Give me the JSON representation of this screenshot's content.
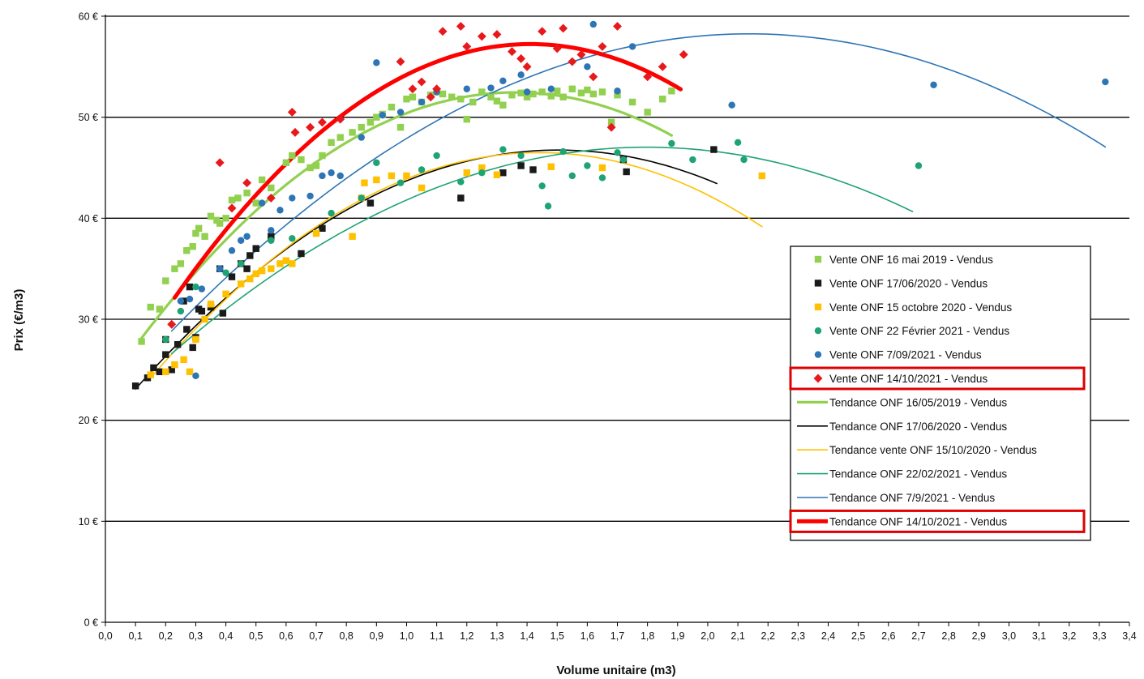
{
  "chart_data": {
    "type": "scatter",
    "title": "",
    "xlabel": "Volume unitaire (m3)",
    "ylabel": "Prix (€/m3)",
    "xlim": [
      0,
      3.4
    ],
    "ylim": [
      0,
      60
    ],
    "x_ticks": [
      "0,0",
      "0,1",
      "0,2",
      "0,3",
      "0,4",
      "0,5",
      "0,6",
      "0,7",
      "0,8",
      "0,9",
      "1,0",
      "1,1",
      "1,2",
      "1,3",
      "1,4",
      "1,5",
      "1,6",
      "1,7",
      "1,8",
      "1,9",
      "2,0",
      "2,1",
      "2,2",
      "2,3",
      "2,4",
      "2,5",
      "2,6",
      "2,7",
      "2,8",
      "2,9",
      "3,0",
      "3,1",
      "3,2",
      "3,3",
      "3,4"
    ],
    "y_ticks": [
      "0 €",
      "10 €",
      "20 €",
      "30 €",
      "40 €",
      "50 €",
      "60 €"
    ],
    "grid": "horizontal",
    "legend_position": "right",
    "series": [
      {
        "name": "Vente ONF 16 mai 2019 - Vendus",
        "marker": "square",
        "color": "#92D050",
        "points": [
          [
            0.12,
            27.8
          ],
          [
            0.15,
            31.2
          ],
          [
            0.18,
            31.0
          ],
          [
            0.2,
            33.8
          ],
          [
            0.23,
            35.0
          ],
          [
            0.25,
            35.5
          ],
          [
            0.27,
            36.8
          ],
          [
            0.29,
            37.2
          ],
          [
            0.3,
            38.5
          ],
          [
            0.31,
            39.0
          ],
          [
            0.33,
            38.2
          ],
          [
            0.35,
            40.2
          ],
          [
            0.37,
            39.8
          ],
          [
            0.38,
            39.5
          ],
          [
            0.4,
            40.0
          ],
          [
            0.42,
            41.8
          ],
          [
            0.44,
            42.0
          ],
          [
            0.47,
            42.5
          ],
          [
            0.5,
            41.5
          ],
          [
            0.52,
            43.8
          ],
          [
            0.55,
            43.0
          ],
          [
            0.6,
            45.5
          ],
          [
            0.62,
            46.2
          ],
          [
            0.65,
            45.8
          ],
          [
            0.68,
            45.0
          ],
          [
            0.7,
            45.2
          ],
          [
            0.72,
            46.2
          ],
          [
            0.75,
            47.5
          ],
          [
            0.78,
            48.0
          ],
          [
            0.82,
            48.5
          ],
          [
            0.85,
            49.0
          ],
          [
            0.88,
            49.5
          ],
          [
            0.9,
            50.0
          ],
          [
            0.92,
            50.3
          ],
          [
            0.95,
            51.0
          ],
          [
            0.98,
            49.0
          ],
          [
            1.0,
            51.8
          ],
          [
            1.02,
            52.0
          ],
          [
            1.05,
            51.5
          ],
          [
            1.08,
            52.2
          ],
          [
            1.1,
            52.5
          ],
          [
            1.12,
            52.3
          ],
          [
            1.15,
            52.0
          ],
          [
            1.18,
            51.8
          ],
          [
            1.2,
            49.8
          ],
          [
            1.22,
            51.5
          ],
          [
            1.25,
            52.5
          ],
          [
            1.28,
            52.0
          ],
          [
            1.3,
            51.6
          ],
          [
            1.32,
            51.2
          ],
          [
            1.35,
            52.2
          ],
          [
            1.38,
            52.4
          ],
          [
            1.4,
            52.0
          ],
          [
            1.42,
            52.3
          ],
          [
            1.45,
            52.5
          ],
          [
            1.48,
            52.1
          ],
          [
            1.5,
            52.6
          ],
          [
            1.52,
            52.0
          ],
          [
            1.55,
            52.8
          ],
          [
            1.58,
            52.4
          ],
          [
            1.6,
            52.7
          ],
          [
            1.62,
            52.3
          ],
          [
            1.65,
            52.5
          ],
          [
            1.68,
            49.5
          ],
          [
            1.7,
            52.2
          ],
          [
            1.75,
            51.5
          ],
          [
            1.8,
            50.5
          ],
          [
            1.85,
            51.8
          ],
          [
            1.88,
            52.6
          ]
        ]
      },
      {
        "name": "Vente ONF 17/06/2020 - Vendus",
        "marker": "square",
        "color": "#1A1A1A",
        "points": [
          [
            0.1,
            23.4
          ],
          [
            0.14,
            24.2
          ],
          [
            0.16,
            25.2
          ],
          [
            0.18,
            24.8
          ],
          [
            0.2,
            26.5
          ],
          [
            0.2,
            28.0
          ],
          [
            0.22,
            25.0
          ],
          [
            0.24,
            27.5
          ],
          [
            0.26,
            31.8
          ],
          [
            0.27,
            29.0
          ],
          [
            0.28,
            33.2
          ],
          [
            0.29,
            27.2
          ],
          [
            0.3,
            28.2
          ],
          [
            0.31,
            31.0
          ],
          [
            0.32,
            30.8
          ],
          [
            0.35,
            31.2
          ],
          [
            0.38,
            35.0
          ],
          [
            0.39,
            30.6
          ],
          [
            0.42,
            34.2
          ],
          [
            0.45,
            35.5
          ],
          [
            0.47,
            35.0
          ],
          [
            0.48,
            36.3
          ],
          [
            0.5,
            37.0
          ],
          [
            0.55,
            38.2
          ],
          [
            0.65,
            36.5
          ],
          [
            0.72,
            39.0
          ],
          [
            0.88,
            41.5
          ],
          [
            1.18,
            42.0
          ],
          [
            1.32,
            44.5
          ],
          [
            1.38,
            45.2
          ],
          [
            1.42,
            44.8
          ],
          [
            1.72,
            45.8
          ],
          [
            1.73,
            44.6
          ],
          [
            2.02,
            46.8
          ]
        ]
      },
      {
        "name": "Vente ONF 15 octobre 2020 - Vendus",
        "marker": "square",
        "color": "#FFC000",
        "points": [
          [
            0.15,
            24.5
          ],
          [
            0.2,
            24.8
          ],
          [
            0.23,
            25.5
          ],
          [
            0.26,
            26.0
          ],
          [
            0.28,
            24.8
          ],
          [
            0.3,
            28.0
          ],
          [
            0.33,
            30.0
          ],
          [
            0.35,
            31.5
          ],
          [
            0.4,
            32.5
          ],
          [
            0.45,
            33.5
          ],
          [
            0.48,
            34.0
          ],
          [
            0.5,
            34.5
          ],
          [
            0.52,
            34.8
          ],
          [
            0.55,
            35.0
          ],
          [
            0.58,
            35.5
          ],
          [
            0.6,
            35.8
          ],
          [
            0.62,
            35.5
          ],
          [
            0.7,
            38.5
          ],
          [
            0.82,
            38.2
          ],
          [
            0.85,
            42.0
          ],
          [
            0.86,
            43.5
          ],
          [
            0.9,
            43.8
          ],
          [
            0.95,
            44.2
          ],
          [
            1.0,
            44.2
          ],
          [
            1.05,
            43.0
          ],
          [
            1.2,
            44.5
          ],
          [
            1.25,
            45.0
          ],
          [
            1.3,
            44.3
          ],
          [
            1.48,
            45.1
          ],
          [
            1.65,
            45.0
          ],
          [
            2.18,
            44.2
          ]
        ]
      },
      {
        "name": "Vente ONF 22 Février 2021 - Vendus",
        "marker": "circle",
        "color": "#1FA373",
        "points": [
          [
            0.2,
            28.0
          ],
          [
            0.25,
            30.8
          ],
          [
            0.3,
            33.2
          ],
          [
            0.4,
            34.6
          ],
          [
            0.45,
            35.5
          ],
          [
            0.55,
            37.8
          ],
          [
            0.62,
            38.0
          ],
          [
            0.75,
            40.5
          ],
          [
            0.85,
            42.0
          ],
          [
            0.9,
            45.5
          ],
          [
            0.98,
            43.5
          ],
          [
            1.05,
            44.8
          ],
          [
            1.1,
            46.2
          ],
          [
            1.18,
            43.6
          ],
          [
            1.25,
            44.5
          ],
          [
            1.32,
            46.8
          ],
          [
            1.38,
            46.2
          ],
          [
            1.45,
            43.2
          ],
          [
            1.47,
            41.2
          ],
          [
            1.52,
            46.6
          ],
          [
            1.55,
            44.2
          ],
          [
            1.6,
            45.2
          ],
          [
            1.65,
            44.0
          ],
          [
            1.7,
            46.5
          ],
          [
            1.72,
            45.8
          ],
          [
            1.88,
            47.4
          ],
          [
            1.95,
            45.8
          ],
          [
            2.1,
            47.5
          ],
          [
            2.12,
            45.8
          ],
          [
            2.7,
            45.2
          ]
        ]
      },
      {
        "name": "Vente ONF 7/09/2021 - Vendus",
        "marker": "circle",
        "color": "#2E75B6",
        "points": [
          [
            0.25,
            31.8
          ],
          [
            0.28,
            32.0
          ],
          [
            0.3,
            24.4
          ],
          [
            0.32,
            33.0
          ],
          [
            0.38,
            35.0
          ],
          [
            0.42,
            36.8
          ],
          [
            0.45,
            37.8
          ],
          [
            0.47,
            38.2
          ],
          [
            0.52,
            41.5
          ],
          [
            0.55,
            38.8
          ],
          [
            0.58,
            40.8
          ],
          [
            0.62,
            42.0
          ],
          [
            0.68,
            42.2
          ],
          [
            0.72,
            44.2
          ],
          [
            0.75,
            44.5
          ],
          [
            0.78,
            44.2
          ],
          [
            0.85,
            48.0
          ],
          [
            0.9,
            55.4
          ],
          [
            0.92,
            50.2
          ],
          [
            0.98,
            50.5
          ],
          [
            1.05,
            51.5
          ],
          [
            1.1,
            52.5
          ],
          [
            1.2,
            52.8
          ],
          [
            1.28,
            52.9
          ],
          [
            1.32,
            53.6
          ],
          [
            1.38,
            54.2
          ],
          [
            1.4,
            52.5
          ],
          [
            1.48,
            52.8
          ],
          [
            1.6,
            55.0
          ],
          [
            1.62,
            59.2
          ],
          [
            1.7,
            52.6
          ],
          [
            1.75,
            57.0
          ],
          [
            2.08,
            51.2
          ],
          [
            2.75,
            53.2
          ],
          [
            3.32,
            53.5
          ]
        ]
      },
      {
        "name": "Vente ONF 14/10/2021 - Vendus",
        "marker": "diamond",
        "color": "#E8191C",
        "points": [
          [
            0.22,
            29.5
          ],
          [
            0.38,
            45.5
          ],
          [
            0.42,
            41.0
          ],
          [
            0.47,
            43.5
          ],
          [
            0.55,
            42.0
          ],
          [
            0.62,
            50.5
          ],
          [
            0.63,
            48.5
          ],
          [
            0.68,
            49.0
          ],
          [
            0.72,
            49.5
          ],
          [
            0.78,
            49.8
          ],
          [
            0.98,
            55.5
          ],
          [
            1.02,
            52.8
          ],
          [
            1.05,
            53.5
          ],
          [
            1.08,
            52.0
          ],
          [
            1.1,
            52.8
          ],
          [
            1.12,
            58.5
          ],
          [
            1.18,
            59.0
          ],
          [
            1.2,
            57.0
          ],
          [
            1.25,
            58.0
          ],
          [
            1.3,
            58.2
          ],
          [
            1.35,
            56.5
          ],
          [
            1.38,
            55.8
          ],
          [
            1.4,
            55.0
          ],
          [
            1.45,
            58.5
          ],
          [
            1.5,
            56.8
          ],
          [
            1.52,
            58.8
          ],
          [
            1.55,
            55.5
          ],
          [
            1.58,
            56.2
          ],
          [
            1.62,
            54.0
          ],
          [
            1.65,
            57.0
          ],
          [
            1.68,
            49.0
          ],
          [
            1.7,
            59.0
          ],
          [
            1.8,
            54.0
          ],
          [
            1.85,
            55.0
          ],
          [
            1.92,
            56.2
          ]
        ]
      }
    ],
    "trendlines": [
      {
        "name": "Tendance ONF 16/05/2019 - Vendus",
        "color": "#92D050",
        "width": 3.2,
        "x_range": [
          0.12,
          1.88
        ],
        "poly": [
          23.2,
          43.0,
          -15.8
        ]
      },
      {
        "name": "Tendance ONF 17/06/2020 - Vendus",
        "color": "#000000",
        "width": 1.6,
        "x_range": [
          0.1,
          2.03
        ],
        "poly": [
          19.6,
          36.1,
          -12.0
        ]
      },
      {
        "name": "Tendance vente ONF 15/10/2020 - Vendus",
        "color": "#FFC000",
        "width": 1.6,
        "x_range": [
          0.15,
          2.18
        ],
        "poly": [
          18.7,
          38.6,
          -13.4
        ]
      },
      {
        "name": "Tendance  ONF 22/02/2021 - Vendus",
        "color": "#1FA373",
        "width": 1.6,
        "x_range": [
          0.22,
          2.68
        ],
        "poly": [
          20.5,
          29.5,
          -8.2
        ]
      },
      {
        "name": "Tendance ONF 7/9/2021 - Vendus",
        "color": "#2E75B6",
        "width": 1.6,
        "x_range": [
          0.22,
          3.32
        ],
        "poly": [
          21.7,
          34.2,
          -8.0
        ]
      },
      {
        "name": "Tendance ONF 14/10/2021 - Vendus",
        "color": "#FF0000",
        "width": 5,
        "x_range": [
          0.23,
          1.91
        ],
        "poly": [
          21.4,
          50.8,
          -18.0
        ]
      }
    ],
    "legend": {
      "highlight_color": "#E00000",
      "highlighted": [
        "Vente ONF 14/10/2021 - Vendus",
        "Tendance ONF 14/10/2021 - Vendus"
      ]
    },
    "colors": {
      "grid": "#000000",
      "axis": "#000000"
    }
  }
}
